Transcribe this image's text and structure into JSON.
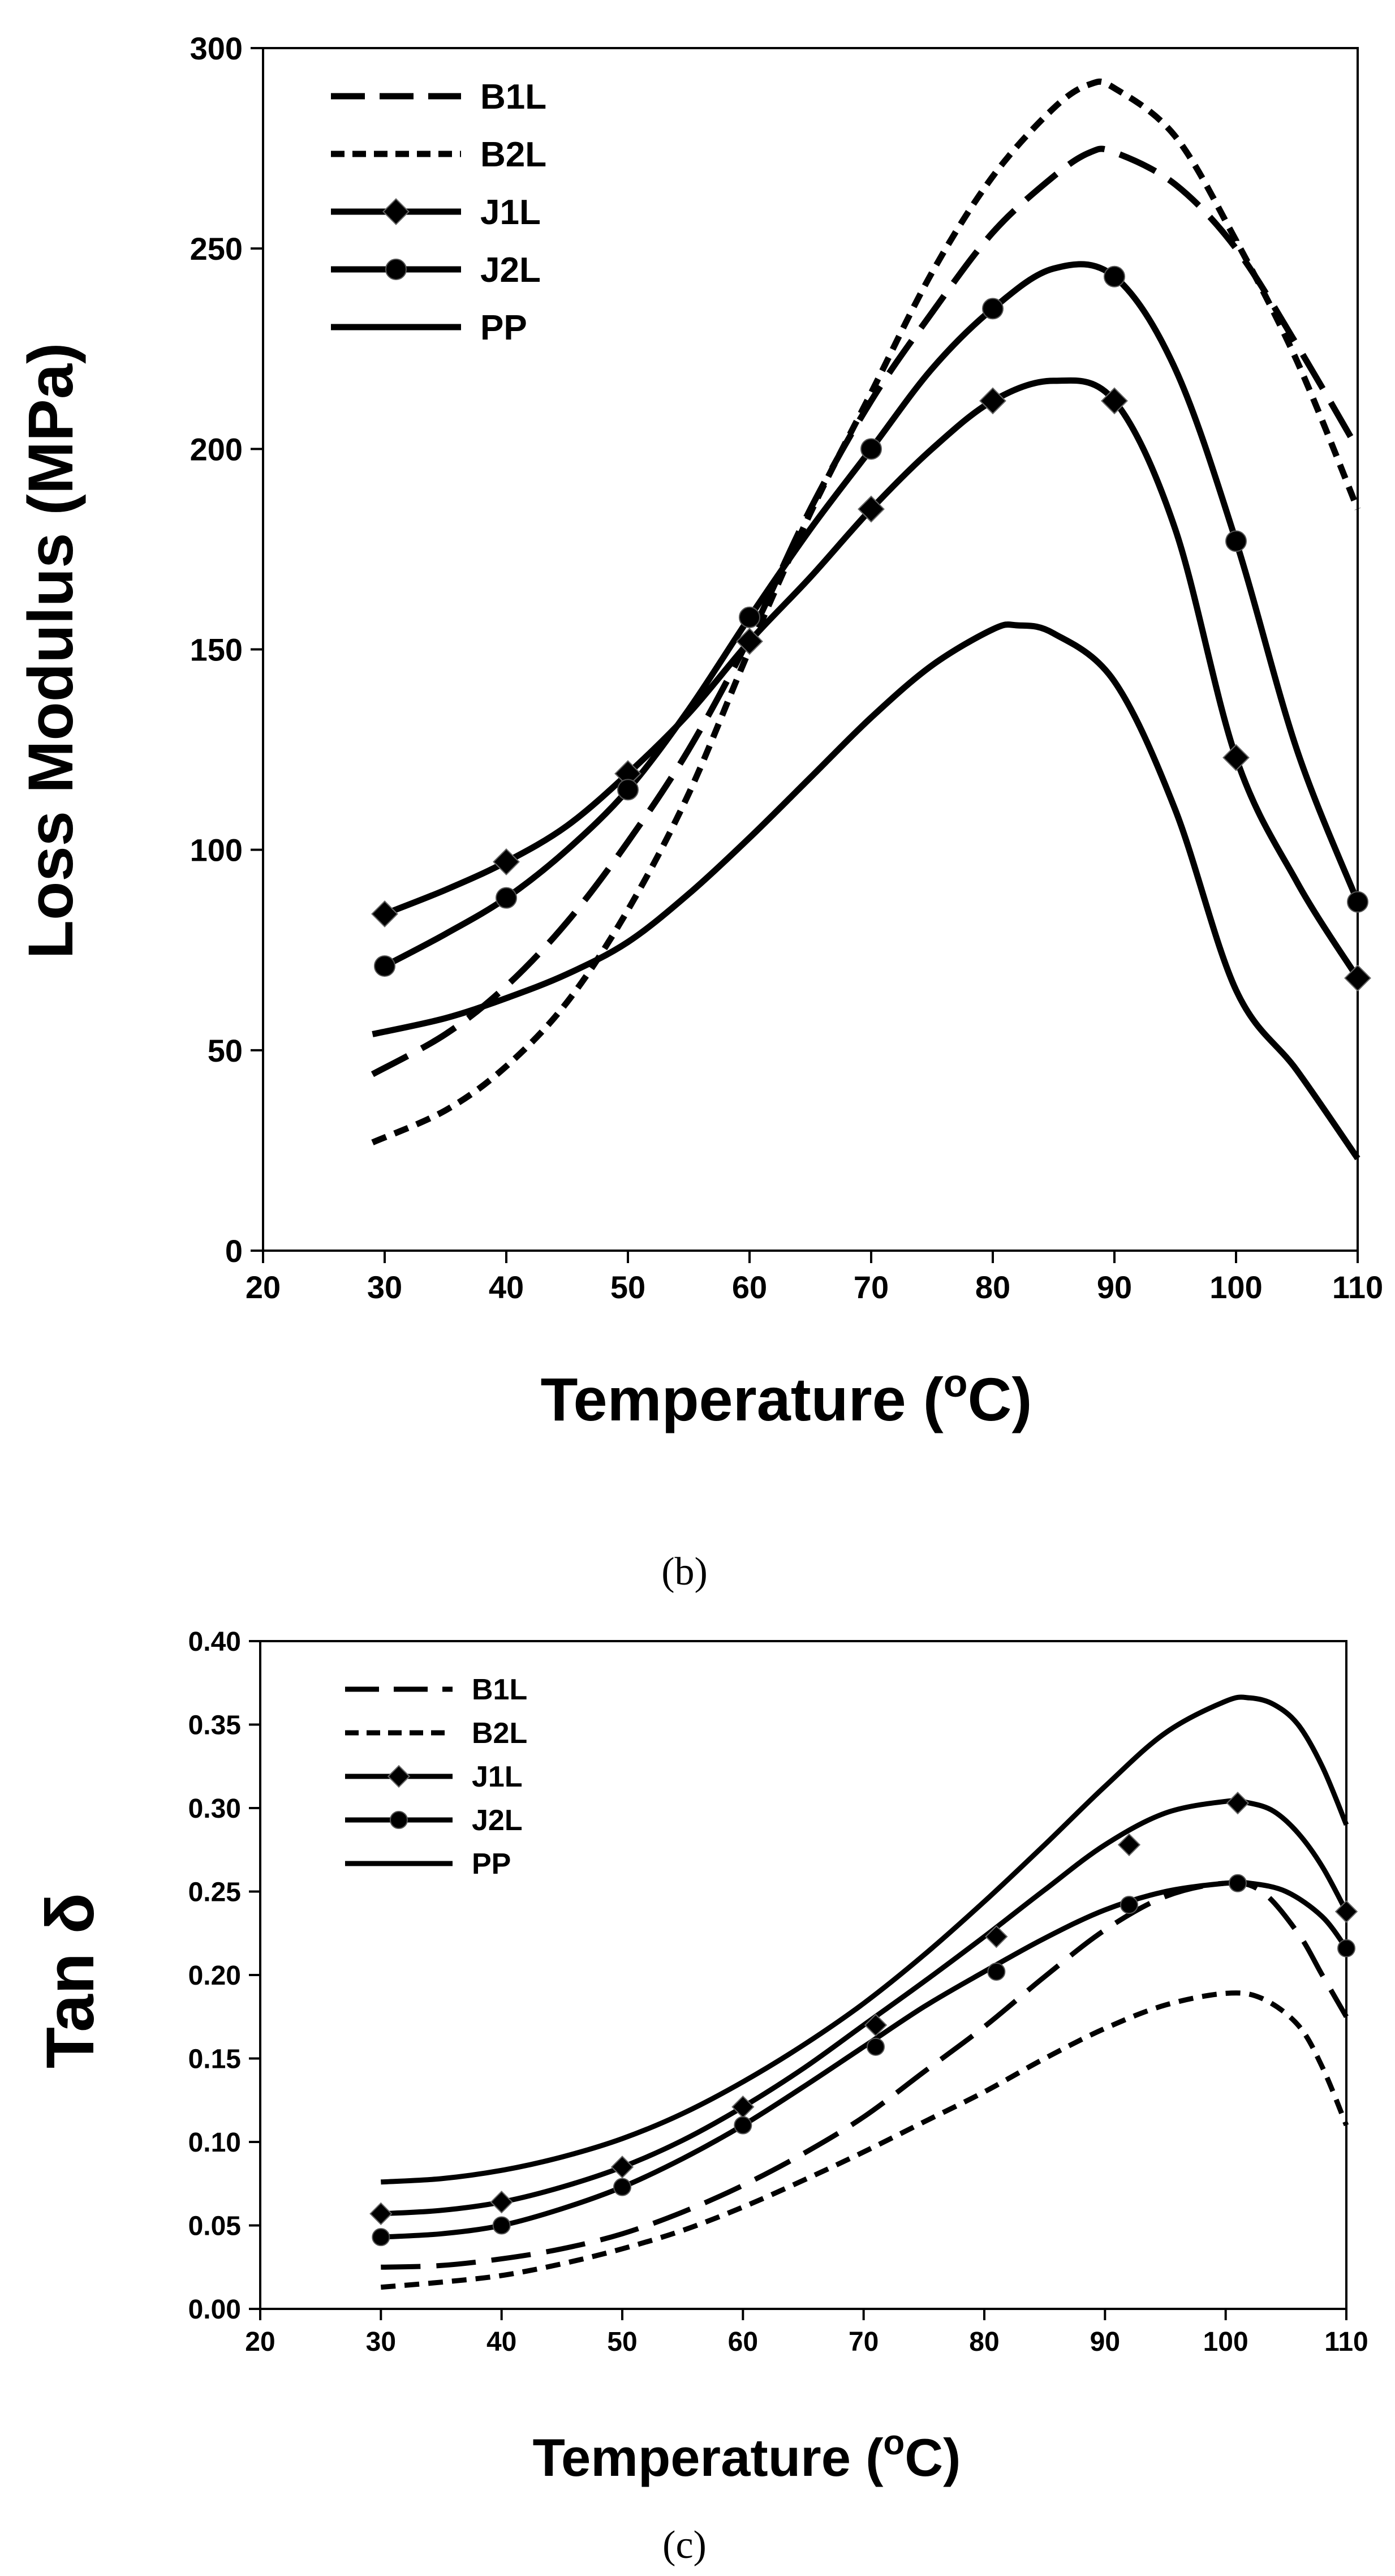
{
  "chart_data": [
    {
      "type": "line",
      "title": "",
      "xlabel": "Temperature (oC)",
      "ylabel": "Loss Modulus (MPa)",
      "xlim": [
        20,
        110
      ],
      "ylim": [
        0,
        300
      ],
      "xticks": [
        "20",
        "30",
        "40",
        "50",
        "60",
        "70",
        "80",
        "90",
        "100",
        "110"
      ],
      "yticks": [
        "0",
        "50",
        "100",
        "150",
        "200",
        "250",
        "300"
      ],
      "legend_position": "top-left",
      "series": [
        {
          "name": "B1L",
          "style": "long-dash",
          "marker": "none",
          "x": [
            29,
            35,
            40,
            45,
            50,
            55,
            60,
            65,
            70,
            75,
            80,
            85,
            88,
            90,
            95,
            100,
            105,
            110
          ],
          "y": [
            44,
            54,
            66,
            82,
            102,
            125,
            153,
            185,
            212,
            234,
            254,
            268,
            274,
            274,
            266,
            250,
            226,
            200
          ]
        },
        {
          "name": "B2L",
          "style": "short-dash",
          "marker": "none",
          "x": [
            29,
            35,
            40,
            45,
            50,
            55,
            60,
            65,
            70,
            75,
            80,
            85,
            88,
            90,
            95,
            100,
            105,
            110
          ],
          "y": [
            27,
            35,
            46,
            62,
            85,
            114,
            150,
            184,
            214,
            244,
            268,
            285,
            291,
            290,
            278,
            252,
            222,
            185
          ]
        },
        {
          "name": "J1L",
          "style": "solid",
          "marker": "diamond",
          "x": [
            30,
            35,
            40,
            45,
            50,
            55,
            60,
            65,
            70,
            75,
            80,
            85,
            90,
            95,
            100,
            105,
            110
          ],
          "y": [
            84,
            90,
            97,
            106,
            119,
            134,
            152,
            168,
            185,
            200,
            212,
            217,
            212,
            180,
            123,
            92,
            68
          ],
          "marker_x": [
            30,
            40,
            50,
            60,
            70,
            80,
            90,
            100,
            110
          ],
          "marker_y": [
            84,
            97,
            119,
            152,
            185,
            212,
            212,
            123,
            68
          ]
        },
        {
          "name": "J2L",
          "style": "solid",
          "marker": "circle",
          "x": [
            30,
            35,
            40,
            45,
            50,
            55,
            60,
            65,
            70,
            75,
            80,
            85,
            90,
            95,
            100,
            105,
            110
          ],
          "y": [
            71,
            79,
            88,
            100,
            115,
            135,
            158,
            180,
            200,
            220,
            235,
            245,
            243,
            220,
            177,
            125,
            87
          ],
          "marker_x": [
            30,
            40,
            50,
            60,
            70,
            80,
            90,
            100,
            110
          ],
          "marker_y": [
            71,
            88,
            115,
            158,
            200,
            235,
            243,
            177,
            87
          ]
        },
        {
          "name": "PP",
          "style": "solid",
          "marker": "none",
          "x": [
            29,
            35,
            40,
            45,
            50,
            55,
            60,
            65,
            70,
            75,
            80,
            82,
            85,
            90,
            95,
            100,
            105,
            110
          ],
          "y": [
            54,
            58,
            63,
            69,
            77,
            89,
            103,
            118,
            133,
            146,
            155,
            156,
            154,
            142,
            110,
            65,
            45,
            23
          ]
        }
      ]
    },
    {
      "type": "line",
      "title": "",
      "xlabel": "Temperature (oC)",
      "ylabel": "Tan δ",
      "xlim": [
        20,
        110
      ],
      "ylim": [
        0.0,
        0.4
      ],
      "xticks": [
        "20",
        "30",
        "40",
        "50",
        "60",
        "70",
        "80",
        "90",
        "100",
        "110"
      ],
      "yticks": [
        "0.00",
        "0.05",
        "0.10",
        "0.15",
        "0.20",
        "0.25",
        "0.30",
        "0.35",
        "0.40"
      ],
      "legend_position": "top-left",
      "series": [
        {
          "name": "B1L",
          "style": "long-dash",
          "marker": "none",
          "x": [
            30,
            35,
            40,
            45,
            50,
            55,
            60,
            65,
            70,
            75,
            80,
            85,
            90,
            95,
            100,
            103,
            106,
            108,
            110
          ],
          "y": [
            0.025,
            0.026,
            0.03,
            0.036,
            0.045,
            0.058,
            0.074,
            0.093,
            0.115,
            0.142,
            0.169,
            0.199,
            0.227,
            0.247,
            0.255,
            0.25,
            0.225,
            0.2,
            0.175
          ]
        },
        {
          "name": "B2L",
          "style": "short-dash",
          "marker": "none",
          "x": [
            30,
            35,
            40,
            45,
            50,
            55,
            60,
            65,
            70,
            75,
            80,
            85,
            90,
            95,
            100,
            103,
            106,
            108,
            110
          ],
          "y": [
            0.013,
            0.016,
            0.02,
            0.027,
            0.036,
            0.047,
            0.061,
            0.077,
            0.094,
            0.112,
            0.13,
            0.15,
            0.168,
            0.182,
            0.189,
            0.186,
            0.17,
            0.145,
            0.11
          ]
        },
        {
          "name": "J1L",
          "style": "solid",
          "marker": "diamond",
          "x": [
            30,
            35,
            40,
            45,
            50,
            55,
            60,
            65,
            70,
            75,
            80,
            85,
            90,
            95,
            100,
            102,
            104,
            106,
            108,
            110
          ],
          "y": [
            0.057,
            0.059,
            0.064,
            0.073,
            0.085,
            0.101,
            0.121,
            0.144,
            0.17,
            0.196,
            0.223,
            0.251,
            0.278,
            0.297,
            0.304,
            0.303,
            0.298,
            0.285,
            0.265,
            0.238
          ],
          "marker_x": [
            30,
            40,
            50,
            60,
            71,
            81,
            92,
            101,
            110
          ],
          "marker_y": [
            0.057,
            0.064,
            0.085,
            0.121,
            0.17,
            0.223,
            0.278,
            0.303,
            0.238
          ]
        },
        {
          "name": "J2L",
          "style": "solid",
          "marker": "circle",
          "x": [
            30,
            35,
            40,
            45,
            50,
            55,
            60,
            65,
            70,
            75,
            80,
            85,
            90,
            95,
            100,
            102,
            105,
            108,
            110
          ],
          "y": [
            0.043,
            0.045,
            0.05,
            0.06,
            0.073,
            0.09,
            0.11,
            0.133,
            0.157,
            0.181,
            0.202,
            0.222,
            0.239,
            0.25,
            0.255,
            0.255,
            0.25,
            0.235,
            0.216
          ],
          "marker_x": [
            30,
            40,
            50,
            60,
            71,
            81,
            92,
            101,
            110
          ],
          "marker_y": [
            0.043,
            0.05,
            0.073,
            0.11,
            0.157,
            0.202,
            0.242,
            0.255,
            0.216
          ]
        },
        {
          "name": "PP",
          "style": "solid",
          "marker": "none",
          "x": [
            30,
            35,
            40,
            45,
            50,
            55,
            60,
            65,
            70,
            75,
            80,
            85,
            90,
            95,
            100,
            102,
            104,
            106,
            108,
            110
          ],
          "y": [
            0.076,
            0.078,
            0.083,
            0.091,
            0.102,
            0.117,
            0.136,
            0.158,
            0.183,
            0.212,
            0.244,
            0.278,
            0.313,
            0.345,
            0.364,
            0.366,
            0.362,
            0.35,
            0.325,
            0.29
          ]
        }
      ]
    }
  ],
  "labels": {
    "panel_b": "(b)",
    "panel_c": "(c)",
    "temperature_text": "Temperature (",
    "degree_o": "o",
    "celsius_close": "C)"
  }
}
